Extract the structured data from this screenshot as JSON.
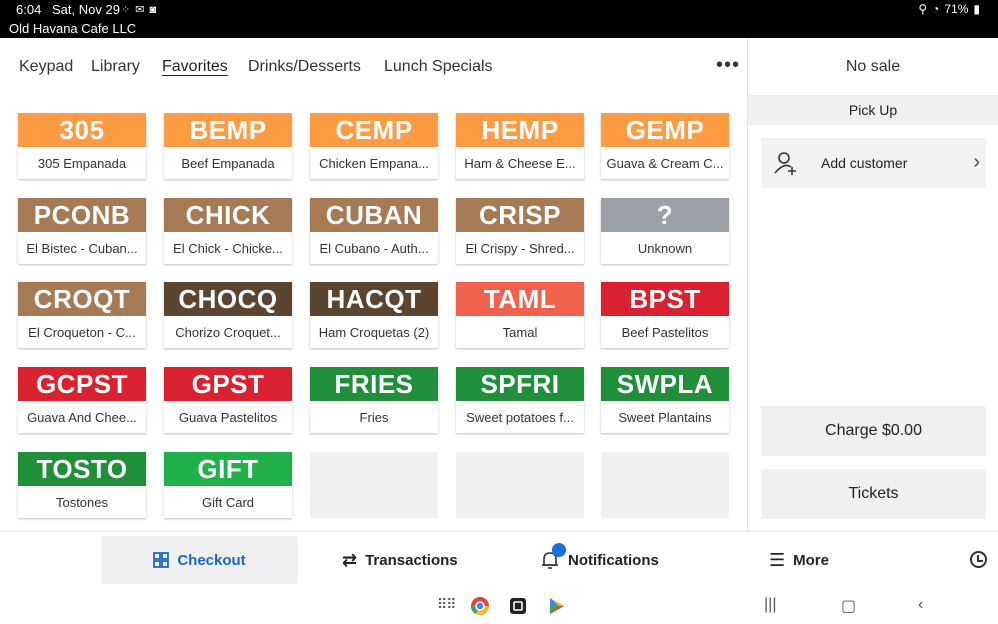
{
  "status_bar": {
    "time": "6:04",
    "date": "Sat, Nov 29",
    "battery": "71%",
    "business_name": "Old Havana Cafe LLC"
  },
  "tabs": [
    "Keypad",
    "Library",
    "Favorites",
    "Drinks/Desserts",
    "Lunch Specials"
  ],
  "active_tab": "Favorites",
  "items": [
    {
      "code": "305",
      "name": "305 Empanada",
      "color": "#ff9b43"
    },
    {
      "code": "BEMP",
      "name": "Beef Empanada",
      "color": "#ff9b43"
    },
    {
      "code": "CEMP",
      "name": "Chicken Empana...",
      "color": "#ff9b43"
    },
    {
      "code": "HEMP",
      "name": "Ham & Cheese E...",
      "color": "#ff9b43"
    },
    {
      "code": "GEMP",
      "name": "Guava & Cream C...",
      "color": "#ff9b43"
    },
    {
      "code": "PCONB",
      "name": "El Bistec - Cuban...",
      "color": "#a57a55"
    },
    {
      "code": "CHICK",
      "name": "El Chick - Chicke...",
      "color": "#a57a55"
    },
    {
      "code": "CUBAN",
      "name": "El Cubano - Auth...",
      "color": "#a57a55"
    },
    {
      "code": "CRISP",
      "name": "El Crispy - Shred...",
      "color": "#a57a55"
    },
    {
      "code": "?",
      "name": "Unknown",
      "color": "#9aa0a6"
    },
    {
      "code": "CROQT",
      "name": "El Croqueton - C...",
      "color": "#a57a55"
    },
    {
      "code": "CHOCQ",
      "name": "Chorizo Croquet...",
      "color": "#5c4530"
    },
    {
      "code": "HACQT",
      "name": "Ham Croquetas (2)",
      "color": "#5c4530"
    },
    {
      "code": "TAML",
      "name": "Tamal",
      "color": "#f0624d"
    },
    {
      "code": "BPST",
      "name": "Beef Pastelitos",
      "color": "#d9212f"
    },
    {
      "code": "GCPST",
      "name": "Guava And Chee...",
      "color": "#d9212f"
    },
    {
      "code": "GPST",
      "name": "Guava Pastelitos",
      "color": "#d9212f"
    },
    {
      "code": "FRIES",
      "name": "Fries",
      "color": "#1f8f3a"
    },
    {
      "code": "SPFRI",
      "name": "Sweet potatoes f...",
      "color": "#1f8f3a"
    },
    {
      "code": "SWPLA",
      "name": "Sweet Plantains",
      "color": "#1f8f3a"
    },
    {
      "code": "TOSTO",
      "name": "Tostones",
      "color": "#1f8f3a"
    },
    {
      "code": "GIFT",
      "name": "Gift Card",
      "color": "#22b04a"
    }
  ],
  "sale_panel": {
    "title": "No sale",
    "order_type": "Pick Up",
    "add_customer": "Add customer",
    "charge": "Charge $0.00",
    "tickets": "Tickets"
  },
  "bottom_nav": {
    "checkout": "Checkout",
    "transactions": "Transactions",
    "notifications": "Notifications",
    "more": "More"
  },
  "accent_color": "#1a66c9"
}
